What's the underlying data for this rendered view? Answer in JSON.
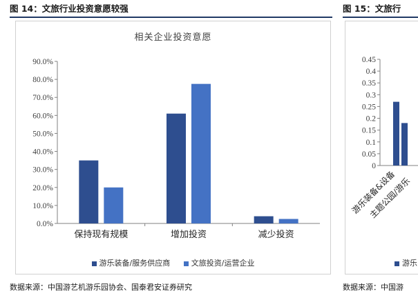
{
  "figure_left": {
    "title": "图 14：文旅行业投资意愿较强",
    "source": "数据来源：中国游艺机游乐园协会、国泰君安证券研究"
  },
  "figure_right": {
    "title": "图 15：文旅行",
    "source": "数据来源：中国游"
  },
  "colors": {
    "series1": "#2e4e8f",
    "series2": "#4472c4",
    "accent": "#1f3864"
  },
  "chart_data": [
    {
      "type": "bar",
      "title": "相关企业投资意愿",
      "categories": [
        "保持现有规模",
        "增加投资",
        "减少投资"
      ],
      "series": [
        {
          "name": "游乐装备/服务供应商",
          "values": [
            35.0,
            61.0,
            4.0
          ]
        },
        {
          "name": "文旅投资/运营企业",
          "values": [
            20.0,
            77.5,
            2.5
          ]
        }
      ],
      "ylim": [
        0,
        90
      ],
      "yticks": [
        "0.0%",
        "10.0%",
        "20.0%",
        "30.0%",
        "40.0%",
        "50.0%",
        "60.0%",
        "70.0%",
        "80.0%",
        "90.0%"
      ],
      "legend": "bottom"
    },
    {
      "type": "bar",
      "categories": [
        "游乐装备&设备",
        "主题公园/游乐"
      ],
      "series": [
        {
          "name": "游乐",
          "values": [
            0.27,
            0.18
          ]
        }
      ],
      "ylim": [
        0,
        0.45
      ],
      "yticks": [
        "0",
        "0.05",
        "0.1",
        "0.15",
        "0.2",
        "0.25",
        "0.3",
        "0.35",
        "0.4",
        "0.45"
      ],
      "legend": "bottom"
    }
  ]
}
